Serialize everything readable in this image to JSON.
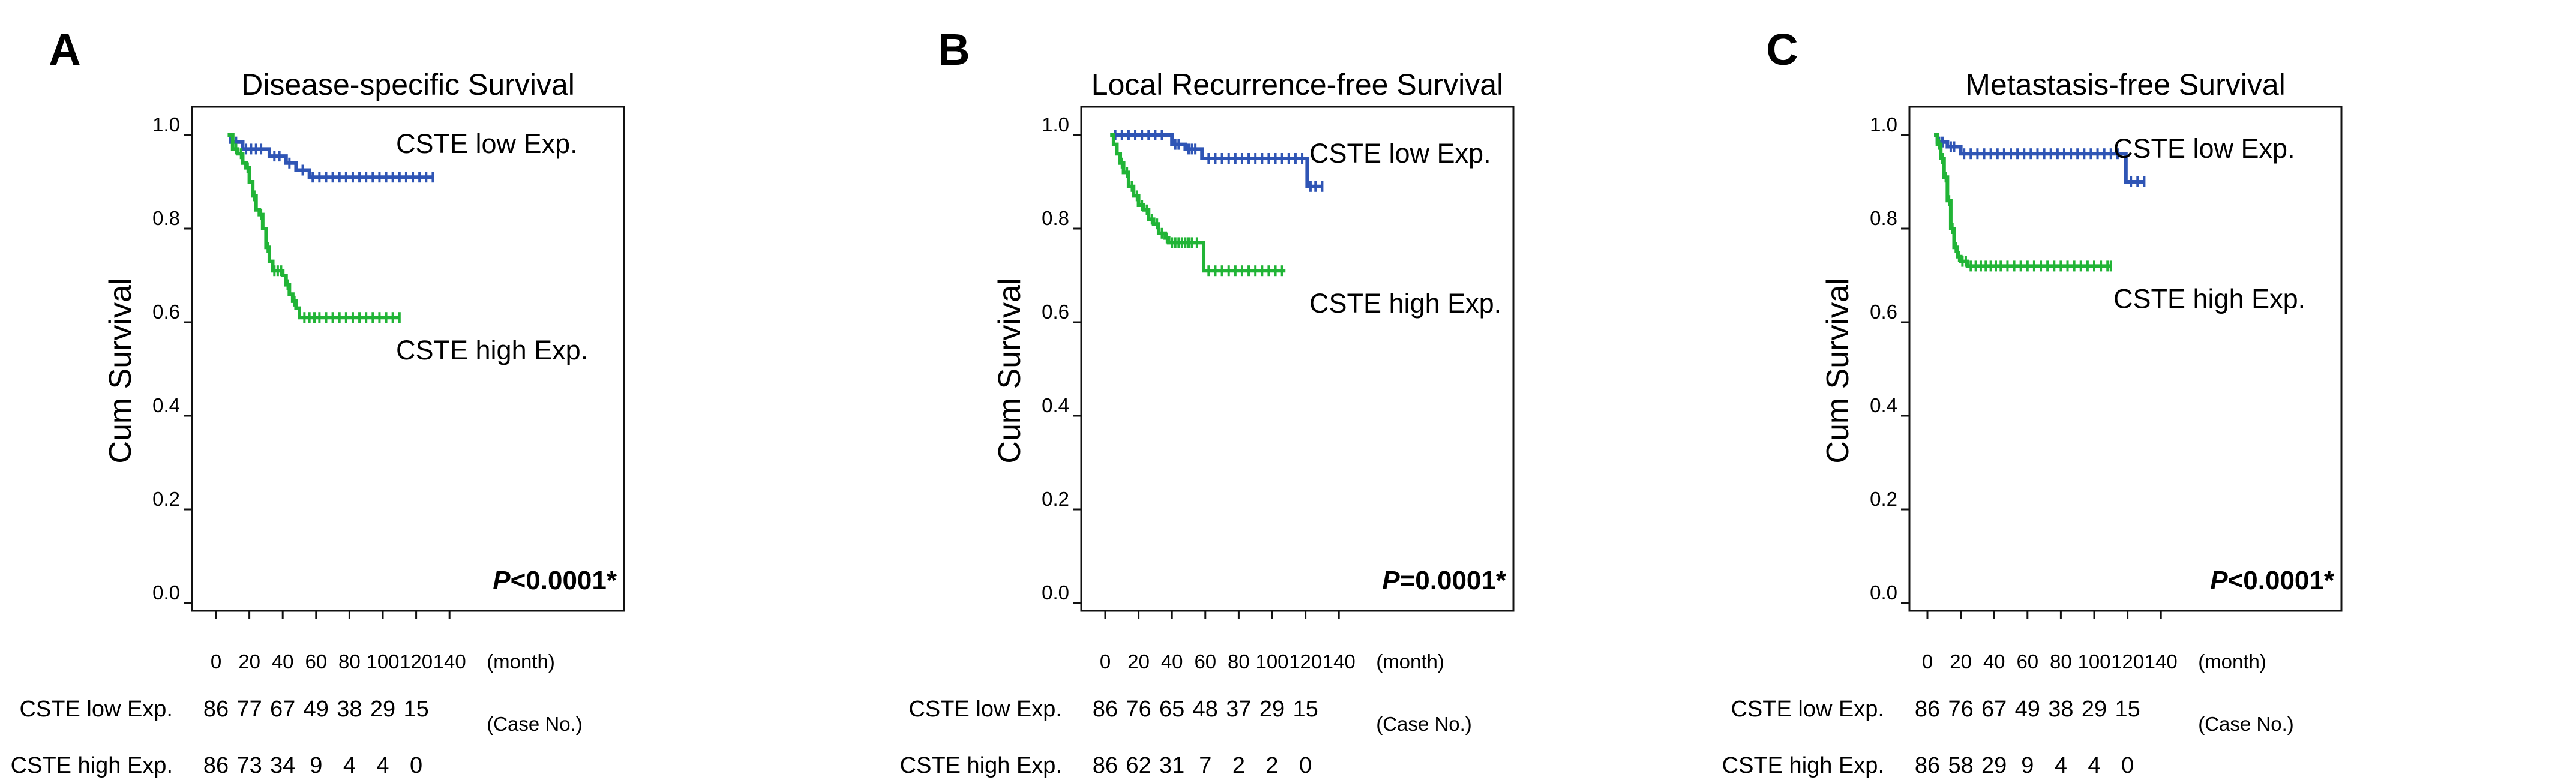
{
  "figure_colors": {
    "low": "#2f55b5",
    "high": "#21b436"
  },
  "risk_table_labels": {
    "months_unit": "(month)",
    "case_no": "(Case No.)",
    "low_label": "CSTE low Exp.",
    "high_label": "CSTE high Exp."
  },
  "chart_data": [
    {
      "type": "line",
      "panel_letter": "A",
      "title": "Disease-specific Survival",
      "xlabel": "(month)",
      "ylabel": "Cum Survival",
      "xlim": [
        0,
        140
      ],
      "ylim": [
        0.0,
        1.0
      ],
      "x_ticks": [
        "0",
        "20",
        "40",
        "60",
        "80",
        "100",
        "120",
        "140"
      ],
      "y_ticks": [
        "0.0",
        "0.2",
        "0.4",
        "0.6",
        "0.8",
        "1.0"
      ],
      "annotation": {
        "p_label": "P",
        "p_rest": "<0.0001*"
      },
      "series": [
        {
          "name": "CSTE low Exp.",
          "color": "#2f55b5",
          "points": [
            [
              7,
              1.0
            ],
            [
              9,
              0.985
            ],
            [
              14,
              0.985
            ],
            [
              16,
              0.97
            ],
            [
              30,
              0.97
            ],
            [
              32,
              0.955
            ],
            [
              40,
              0.955
            ],
            [
              42,
              0.94
            ],
            [
              46,
              0.94
            ],
            [
              48,
              0.925
            ],
            [
              54,
              0.925
            ],
            [
              56,
              0.91
            ],
            [
              130,
              0.91
            ]
          ],
          "censor_x": [
            10,
            12,
            18,
            21,
            24,
            27,
            35,
            38,
            44,
            52,
            58,
            62,
            66,
            70,
            74,
            78,
            82,
            86,
            90,
            94,
            98,
            102,
            106,
            110,
            114,
            118,
            122,
            126,
            130
          ]
        },
        {
          "name": "CSTE high Exp.",
          "color": "#21b436",
          "points": [
            [
              7,
              1.0
            ],
            [
              10,
              0.97
            ],
            [
              13,
              0.96
            ],
            [
              16,
              0.94
            ],
            [
              18,
              0.93
            ],
            [
              20,
              0.9
            ],
            [
              22,
              0.87
            ],
            [
              24,
              0.84
            ],
            [
              26,
              0.83
            ],
            [
              28,
              0.8
            ],
            [
              30,
              0.76
            ],
            [
              32,
              0.73
            ],
            [
              34,
              0.71
            ],
            [
              40,
              0.7
            ],
            [
              42,
              0.68
            ],
            [
              44,
              0.66
            ],
            [
              46,
              0.645
            ],
            [
              48,
              0.63
            ],
            [
              50,
              0.61
            ],
            [
              110,
              0.61
            ]
          ],
          "censor_x": [
            12,
            15,
            19,
            23,
            27,
            31,
            35,
            37,
            39,
            43,
            47,
            53,
            56,
            59,
            62,
            66,
            70,
            74,
            78,
            82,
            86,
            90,
            94,
            98,
            102,
            106,
            110
          ]
        }
      ],
      "risk_table": {
        "time_points": [
          "0",
          "20",
          "40",
          "60",
          "80",
          "100",
          "120"
        ],
        "low": [
          "86",
          "77",
          "67",
          "49",
          "38",
          "29",
          "15"
        ],
        "high": [
          "86",
          "73",
          "34",
          "9",
          "4",
          "4",
          "0"
        ]
      }
    },
    {
      "type": "line",
      "panel_letter": "B",
      "title": "Local Recurrence-free Survival",
      "xlabel": "(month)",
      "ylabel": "Cum Survival",
      "xlim": [
        0,
        140
      ],
      "ylim": [
        0.0,
        1.0
      ],
      "x_ticks": [
        "0",
        "20",
        "40",
        "60",
        "80",
        "100",
        "120",
        "140"
      ],
      "y_ticks": [
        "0.0",
        "0.2",
        "0.4",
        "0.6",
        "0.8",
        "1.0"
      ],
      "annotation": {
        "p_label": "P",
        "p_rest": "=0.0001*"
      },
      "series": [
        {
          "name": "CSTE low Exp.",
          "color": "#2f55b5",
          "points": [
            [
              3,
              1.0
            ],
            [
              38,
              1.0
            ],
            [
              40,
              0.98
            ],
            [
              46,
              0.98
            ],
            [
              48,
              0.97
            ],
            [
              56,
              0.97
            ],
            [
              58,
              0.95
            ],
            [
              120,
              0.95
            ],
            [
              121,
              0.89
            ],
            [
              130,
              0.89
            ]
          ],
          "censor_x": [
            6,
            10,
            14,
            18,
            22,
            26,
            30,
            34,
            42,
            44,
            50,
            52,
            54,
            62,
            66,
            70,
            74,
            78,
            82,
            86,
            90,
            94,
            98,
            102,
            106,
            110,
            114,
            118,
            123,
            126,
            130
          ]
        },
        {
          "name": "CSTE high Exp.",
          "color": "#21b436",
          "points": [
            [
              3,
              1.0
            ],
            [
              5,
              0.98
            ],
            [
              7,
              0.96
            ],
            [
              9,
              0.94
            ],
            [
              11,
              0.92
            ],
            [
              14,
              0.89
            ],
            [
              17,
              0.87
            ],
            [
              20,
              0.85
            ],
            [
              23,
              0.84
            ],
            [
              26,
              0.82
            ],
            [
              29,
              0.81
            ],
            [
              32,
              0.79
            ],
            [
              36,
              0.78
            ],
            [
              38,
              0.77
            ],
            [
              58,
              0.77
            ],
            [
              59,
              0.71
            ],
            [
              108,
              0.71
            ]
          ],
          "censor_x": [
            10,
            13,
            16,
            19,
            22,
            25,
            28,
            31,
            34,
            37,
            40,
            42,
            44,
            46,
            48,
            50,
            52,
            55,
            62,
            66,
            70,
            74,
            78,
            82,
            86,
            90,
            94,
            98,
            102,
            106
          ]
        }
      ],
      "risk_table": {
        "time_points": [
          "0",
          "20",
          "40",
          "60",
          "80",
          "100",
          "120"
        ],
        "low": [
          "86",
          "76",
          "65",
          "48",
          "37",
          "29",
          "15"
        ],
        "high": [
          "86",
          "62",
          "31",
          "7",
          "2",
          "2",
          "0"
        ]
      }
    },
    {
      "type": "line",
      "panel_letter": "C",
      "title": "Metastasis-free Survival",
      "xlabel": "(month)",
      "ylabel": "Cum Survival",
      "xlim": [
        0,
        140
      ],
      "ylim": [
        0.0,
        1.0
      ],
      "x_ticks": [
        "0",
        "20",
        "40",
        "60",
        "80",
        "100",
        "120",
        "140"
      ],
      "y_ticks": [
        "0.0",
        "0.2",
        "0.4",
        "0.6",
        "0.8",
        "1.0"
      ],
      "annotation": {
        "p_label": "P",
        "p_rest": "<0.0001*"
      },
      "series": [
        {
          "name": "CSTE low Exp.",
          "color": "#2f55b5",
          "points": [
            [
              4,
              1.0
            ],
            [
              6,
              0.985
            ],
            [
              10,
              0.985
            ],
            [
              12,
              0.975
            ],
            [
              18,
              0.975
            ],
            [
              20,
              0.96
            ],
            [
              118,
              0.96
            ],
            [
              119,
              0.9
            ],
            [
              130,
              0.9
            ]
          ],
          "censor_x": [
            7,
            9,
            14,
            16,
            22,
            26,
            30,
            34,
            38,
            42,
            46,
            50,
            54,
            58,
            62,
            66,
            70,
            74,
            78,
            82,
            86,
            90,
            94,
            98,
            102,
            106,
            110,
            114,
            122,
            126,
            130
          ]
        },
        {
          "name": "CSTE high Exp.",
          "color": "#21b436",
          "points": [
            [
              4,
              1.0
            ],
            [
              6,
              0.98
            ],
            [
              8,
              0.95
            ],
            [
              10,
              0.91
            ],
            [
              12,
              0.86
            ],
            [
              14,
              0.8
            ],
            [
              16,
              0.76
            ],
            [
              18,
              0.74
            ],
            [
              20,
              0.73
            ],
            [
              24,
              0.72
            ],
            [
              110,
              0.72
            ]
          ],
          "censor_x": [
            7,
            9,
            11,
            13,
            15,
            17,
            19,
            21,
            23,
            26,
            29,
            32,
            35,
            38,
            41,
            44,
            48,
            52,
            56,
            60,
            64,
            68,
            72,
            76,
            80,
            84,
            88,
            92,
            96,
            100,
            104,
            108,
            110
          ]
        }
      ],
      "risk_table": {
        "time_points": [
          "0",
          "20",
          "40",
          "60",
          "80",
          "100",
          "120"
        ],
        "low": [
          "86",
          "76",
          "67",
          "49",
          "38",
          "29",
          "15"
        ],
        "high": [
          "86",
          "58",
          "29",
          "9",
          "4",
          "4",
          "0"
        ]
      }
    }
  ]
}
